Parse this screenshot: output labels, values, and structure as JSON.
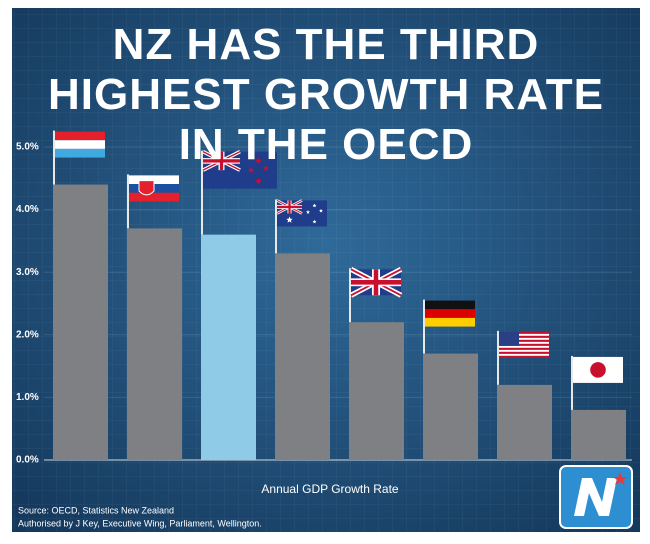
{
  "chart_data": {
    "type": "bar",
    "title": "NZ HAS THE THIRD HIGHEST GROWTH RATE IN THE OECD",
    "categories": [
      null,
      null,
      null,
      null,
      null,
      null,
      null,
      null
    ],
    "values": [
      4.4,
      3.7,
      3.6,
      3.3,
      2.2,
      1.7,
      1.2,
      0.8
    ],
    "colors": [
      "#7e8083",
      "#7e8083",
      "#8fcbe6",
      "#7e8083",
      "#7e8083",
      "#7e8083",
      "#7e8083",
      "#7e8083"
    ],
    "ylim": [
      0,
      5
    ],
    "yticks": [
      {
        "value": 0,
        "label": "0.0%"
      },
      {
        "value": 1,
        "label": "1.0%"
      },
      {
        "value": 2,
        "label": "2.0%"
      },
      {
        "value": 3,
        "label": "3.0%"
      },
      {
        "value": 4,
        "label": "4.0%"
      },
      {
        "value": 5,
        "label": "5.0%"
      }
    ],
    "grid": true,
    "x_label": "Annual GDP Growth Rate",
    "source": "Source: OECD, Statistics New Zealand",
    "footnote": "Authorised by J Key, Executive Wing, Parliament, Wellington."
  }
}
